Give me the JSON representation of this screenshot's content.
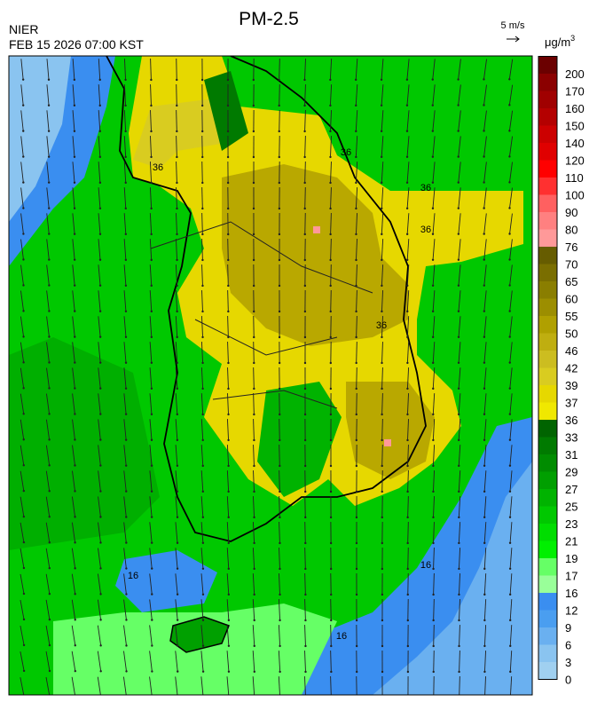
{
  "header": {
    "title": "PM-2.5",
    "agency": "NIER",
    "datetime": "FEB 15 2026 07:00 KST",
    "wind_scale": "5 m/s"
  },
  "legend": {
    "unit": "μg/m",
    "unit_sup": "3",
    "labels": [
      200,
      170,
      160,
      150,
      140,
      120,
      110,
      100,
      90,
      80,
      76,
      70,
      65,
      60,
      55,
      50,
      46,
      42,
      39,
      37,
      36,
      33,
      31,
      29,
      27,
      25,
      23,
      21,
      19,
      17,
      16,
      12,
      9,
      6,
      3,
      0
    ]
  },
  "map": {
    "contour_labels": [
      "36",
      "36",
      "36",
      "36",
      "36",
      "16",
      "16",
      "16"
    ]
  }
}
